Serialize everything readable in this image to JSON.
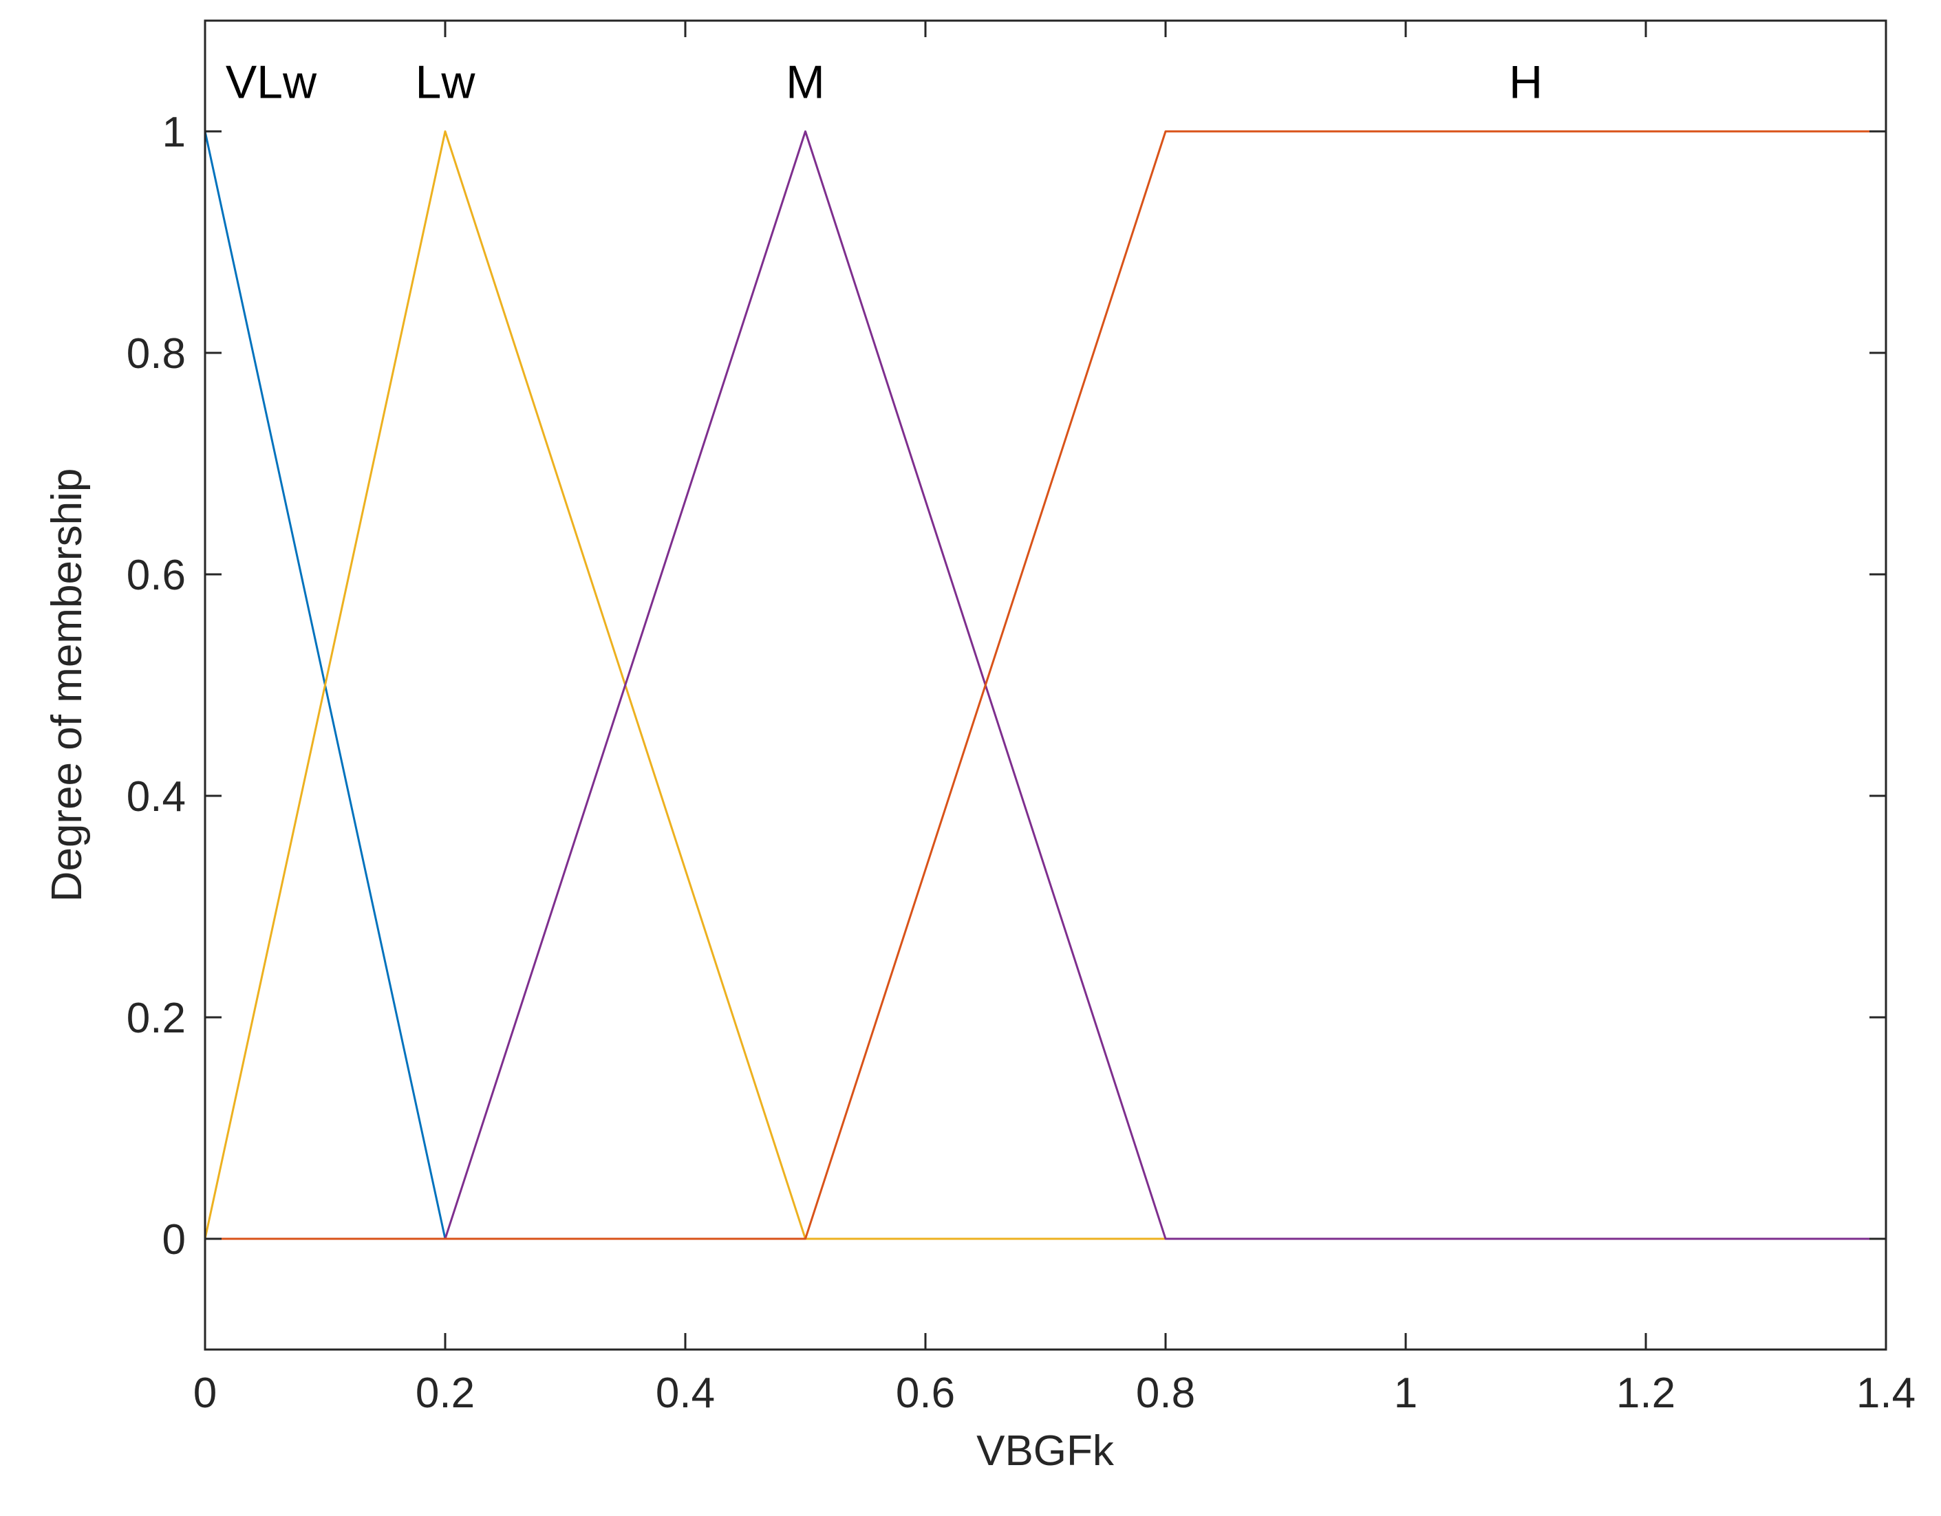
{
  "chart_data": {
    "type": "line",
    "title": "",
    "xlabel": "VBGFk",
    "ylabel": "Degree of membership",
    "xlim": [
      0,
      1.4
    ],
    "ylim": [
      -0.1,
      1.1
    ],
    "x_ticks": [
      0,
      0.2,
      0.4,
      0.6,
      0.8,
      1,
      1.2,
      1.4
    ],
    "x_tick_labels": [
      "0",
      "0.2",
      "0.4",
      "0.6",
      "0.8",
      "1",
      "1.2",
      "1.4"
    ],
    "y_ticks": [
      0,
      0.2,
      0.4,
      0.6,
      0.8,
      1
    ],
    "y_tick_labels": [
      "0",
      "0.2",
      "0.4",
      "0.6",
      "0.8",
      "1"
    ],
    "grid": false,
    "legend": "none",
    "series": [
      {
        "name": "VLw",
        "color": "#0072BD",
        "x": [
          0,
          0.2,
          1.4
        ],
        "y": [
          1,
          0,
          0
        ],
        "label_at": {
          "x": 0.055,
          "y": 1.045
        }
      },
      {
        "name": "Lw",
        "color": "#EDB120",
        "x": [
          0,
          0.2,
          0.5,
          1.4
        ],
        "y": [
          0,
          1,
          0,
          0
        ],
        "label_at": {
          "x": 0.2,
          "y": 1.045
        }
      },
      {
        "name": "M",
        "color": "#7E2F8E",
        "x": [
          0,
          0.2,
          0.5,
          0.8,
          1.4
        ],
        "y": [
          0,
          0,
          1,
          0,
          0
        ],
        "label_at": {
          "x": 0.5,
          "y": 1.045
        }
      },
      {
        "name": "H",
        "color": "#D95319",
        "x": [
          0,
          0.5,
          0.8,
          1.4
        ],
        "y": [
          0,
          0,
          1,
          1
        ],
        "label_at": {
          "x": 1.1,
          "y": 1.045
        }
      }
    ]
  }
}
